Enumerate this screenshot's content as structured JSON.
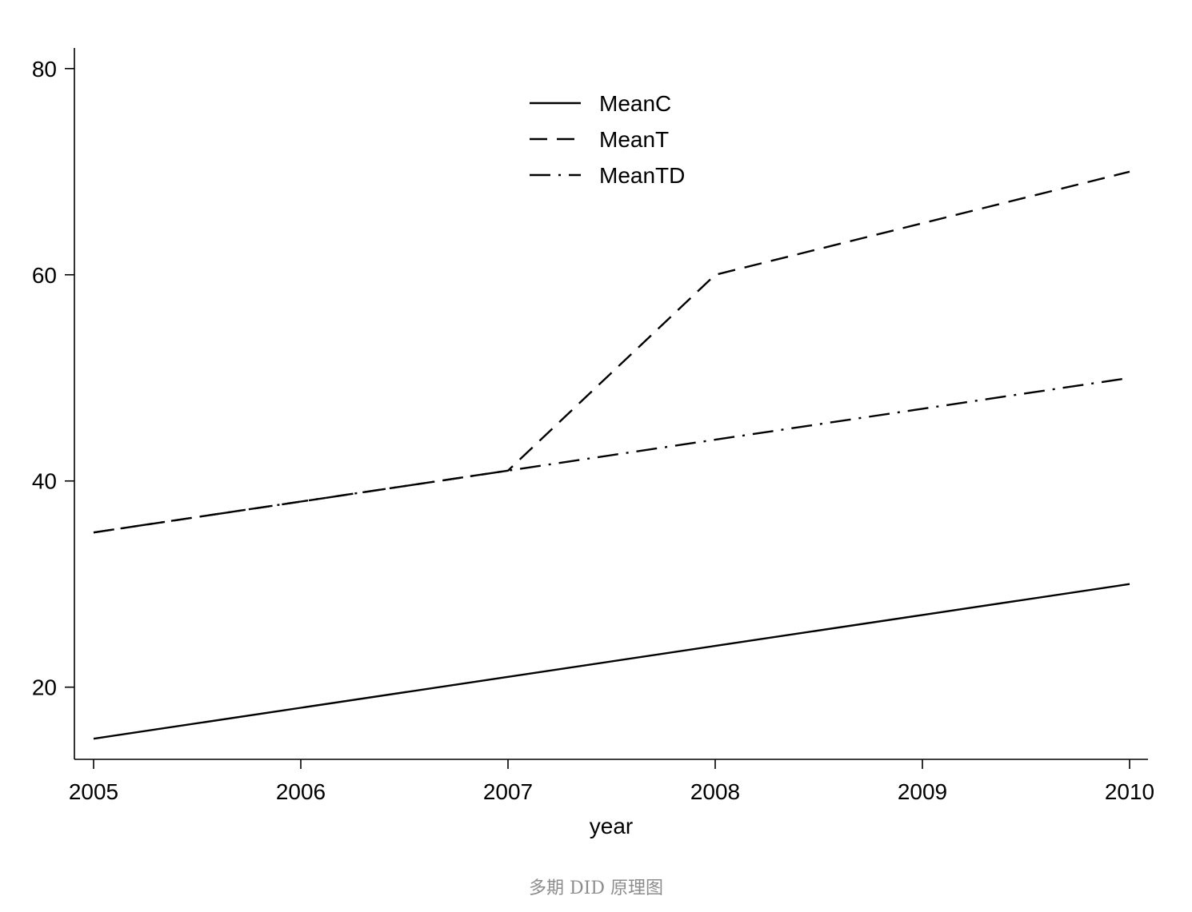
{
  "chart_data": {
    "type": "line",
    "xlabel": "year",
    "ylabel": "",
    "x": [
      2005,
      2006,
      2007,
      2008,
      2009,
      2010
    ],
    "xlim": [
      2005,
      2010
    ],
    "ylim": [
      13,
      82
    ],
    "x_ticks": [
      "2005",
      "2006",
      "2007",
      "2008",
      "2009",
      "2010"
    ],
    "y_ticks": [
      20,
      40,
      60,
      80
    ],
    "grid": false,
    "legend_position": "top-center",
    "series": [
      {
        "name": "MeanC",
        "style": "solid",
        "color": "#000000",
        "values": [
          15,
          18,
          21,
          24,
          27,
          30
        ]
      },
      {
        "name": "MeanT",
        "style": "dashed",
        "color": "#000000",
        "values": [
          35,
          38,
          41,
          60,
          65,
          70
        ]
      },
      {
        "name": "MeanTD",
        "style": "dash-dot",
        "color": "#000000",
        "values": [
          35,
          38,
          41,
          44,
          47,
          50
        ]
      }
    ]
  },
  "caption": "多期 DID 原理图"
}
